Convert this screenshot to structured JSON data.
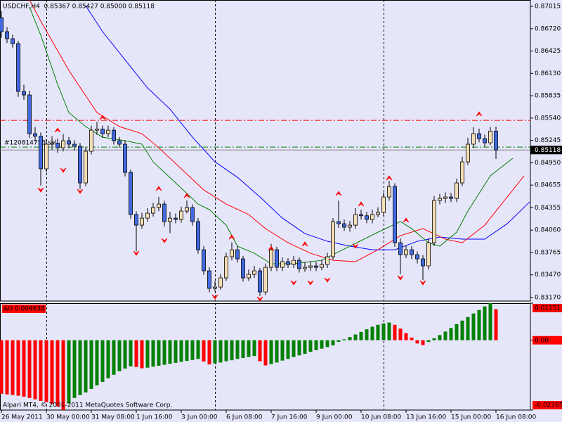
{
  "chart_data": [
    {
      "type": "candlestick",
      "title": "USDCHF,H4  0.85367 0.85427 0.85000 0.85118",
      "open": [
        0.86866,
        0.86681,
        0.86588,
        0.86523,
        0.85891,
        0.85845,
        0.85334,
        0.853,
        0.8487,
        0.85195,
        0.8521,
        0.85148,
        0.85241,
        0.85195,
        0.85167,
        0.84684,
        0.85102,
        0.8538,
        0.85395,
        0.85334,
        0.8538,
        0.85241,
        0.85195,
        0.84823,
        0.84266,
        0.84126,
        0.84219,
        0.84284,
        0.84359,
        0.84405,
        0.84173,
        0.84219,
        0.84201,
        0.84312,
        0.84359,
        0.84173,
        0.83801,
        0.83523,
        0.83291,
        0.83309,
        0.8343,
        0.83709,
        0.83801,
        0.83681,
        0.8343,
        0.83476,
        0.83523,
        0.83244,
        0.83569,
        0.83801,
        0.83569,
        0.83644,
        0.83606,
        0.83662,
        0.83551,
        0.83569,
        0.83588,
        0.83569,
        0.83606,
        0.83709,
        0.84173,
        0.84145,
        0.84099,
        0.84126,
        0.84266,
        0.8425,
        0.84201,
        0.84266,
        0.84294,
        0.84498,
        0.84637,
        0.83894,
        0.83736,
        0.83801,
        0.83736,
        0.83681,
        0.83588,
        0.83894,
        0.84452,
        0.84479,
        0.84498,
        0.84479,
        0.84684,
        0.84962,
        0.85195,
        0.85334,
        0.85269,
        0.85213,
        0.85367
      ],
      "high": [
        0.8695,
        0.8674,
        0.8664,
        0.8656,
        0.8598,
        0.859,
        0.8542,
        0.8535,
        0.8526,
        0.853,
        0.8527,
        0.8533,
        0.8529,
        0.8525,
        0.8521,
        0.8516,
        0.8544,
        0.8549,
        0.8544,
        0.8544,
        0.8542,
        0.8529,
        0.8525,
        0.8486,
        0.8431,
        0.8429,
        0.8435,
        0.8442,
        0.845,
        0.8445,
        0.843,
        0.8428,
        0.8437,
        0.8445,
        0.844,
        0.8422,
        0.8385,
        0.8357,
        0.8339,
        0.8348,
        0.8376,
        0.839,
        0.8385,
        0.8372,
        0.8354,
        0.8359,
        0.8356,
        0.8362,
        0.8388,
        0.8384,
        0.837,
        0.8369,
        0.8372,
        0.837,
        0.8364,
        0.8365,
        0.8364,
        0.8367,
        0.8376,
        0.8422,
        0.8445,
        0.842,
        0.8418,
        0.8435,
        0.8433,
        0.843,
        0.8433,
        0.8436,
        0.8456,
        0.8471,
        0.8468,
        0.8395,
        0.8386,
        0.8385,
        0.8378,
        0.8373,
        0.8395,
        0.8451,
        0.8454,
        0.8456,
        0.8455,
        0.8474,
        0.8503,
        0.8528,
        0.8542,
        0.854,
        0.8532,
        0.8542,
        0.85427
      ],
      "low": [
        0.866,
        0.8653,
        0.8647,
        0.8582,
        0.8578,
        0.8528,
        0.8523,
        0.8465,
        0.8482,
        0.8512,
        0.8508,
        0.851,
        0.8514,
        0.8511,
        0.846,
        0.8464,
        0.8506,
        0.8532,
        0.8528,
        0.8529,
        0.8519,
        0.8515,
        0.8477,
        0.8421,
        0.8378,
        0.8408,
        0.8417,
        0.8424,
        0.8431,
        0.8411,
        0.8402,
        0.8415,
        0.8416,
        0.8428,
        0.8412,
        0.8375,
        0.8347,
        0.8324,
        0.8325,
        0.8327,
        0.8339,
        0.8366,
        0.8363,
        0.8338,
        0.8339,
        0.8343,
        0.8319,
        0.832,
        0.8352,
        0.8352,
        0.8352,
        0.8356,
        0.8356,
        0.835,
        0.8351,
        0.8352,
        0.8352,
        0.8353,
        0.8356,
        0.8367,
        0.8409,
        0.8405,
        0.8404,
        0.8408,
        0.842,
        0.8415,
        0.8415,
        0.8423,
        0.8425,
        0.8445,
        0.8384,
        0.8348,
        0.8369,
        0.8368,
        0.8362,
        0.834,
        0.8354,
        0.8385,
        0.844,
        0.8442,
        0.8443,
        0.8443,
        0.8464,
        0.8492,
        0.8515,
        0.8522,
        0.8516,
        0.8518,
        0.85
      ],
      "close": [
        0.86681,
        0.86588,
        0.86523,
        0.85891,
        0.85845,
        0.85334,
        0.853,
        0.8487,
        0.85195,
        0.8521,
        0.85148,
        0.85241,
        0.85195,
        0.85167,
        0.84684,
        0.85102,
        0.8538,
        0.85395,
        0.85334,
        0.8538,
        0.85241,
        0.85195,
        0.84823,
        0.84266,
        0.84126,
        0.84219,
        0.84284,
        0.84359,
        0.84405,
        0.84173,
        0.84219,
        0.84201,
        0.84312,
        0.84359,
        0.84173,
        0.83801,
        0.83523,
        0.83291,
        0.83309,
        0.8343,
        0.83709,
        0.83801,
        0.83681,
        0.8343,
        0.83476,
        0.83523,
        0.83244,
        0.83569,
        0.83801,
        0.83569,
        0.83644,
        0.83606,
        0.83662,
        0.83551,
        0.83569,
        0.83588,
        0.83569,
        0.83606,
        0.83709,
        0.84173,
        0.84145,
        0.84099,
        0.84126,
        0.84266,
        0.8425,
        0.84201,
        0.84266,
        0.84294,
        0.84498,
        0.84637,
        0.83894,
        0.83736,
        0.83801,
        0.83736,
        0.83681,
        0.83588,
        0.83894,
        0.84452,
        0.84479,
        0.84498,
        0.84479,
        0.84684,
        0.84962,
        0.85195,
        0.85334,
        0.85269,
        0.85213,
        0.85367,
        0.85118
      ],
      "up_color": "#f5deb3",
      "down_color": "#4169e1",
      "ylim": [
        0.83124,
        0.87099
      ],
      "yticks": [
        0.87015,
        {
          "value": 0.8672,
          "label": "0.86720"
        },
        0.86425,
        {
          "value": 0.8613,
          "label": "0.86130"
        },
        0.85835,
        {
          "value": 0.8554,
          "label": "0.85540"
        },
        0.85245,
        {
          "value": 0.8495,
          "label": "0.84950"
        },
        0.84655,
        0.84355,
        {
          "value": 0.8406,
          "label": "0.84060"
        },
        0.83765,
        {
          "value": 0.8347,
          "label": "0.83470"
        },
        {
          "value": 0.8317,
          "label": "0.83170"
        }
      ],
      "xticks": [
        {
          "value": 0,
          "label": "26 May 2011"
        },
        {
          "value": 8,
          "label": "30 May 00:00"
        },
        {
          "value": 16,
          "label": "31 May 08:00"
        },
        {
          "value": 24,
          "label": "1 Jun 16:00"
        },
        {
          "value": 32,
          "label": "3 Jun 00:00"
        },
        {
          "value": 40,
          "label": "6 Jun 08:00"
        },
        {
          "value": 48,
          "label": "7 Jun 16:00"
        },
        {
          "value": 56,
          "label": "9 Jun 00:00"
        },
        {
          "value": 64,
          "label": "10 Jun 08:00"
        },
        {
          "value": 72,
          "label": "13 Jun 16:00"
        },
        {
          "value": 80,
          "label": "15 Jun 00:00"
        },
        {
          "value": 88,
          "label": "16 Jun 08:00"
        }
      ],
      "lines": [
        {
          "color": "#0000ff",
          "x": [
            15,
            18,
            22,
            26,
            30,
            34,
            38,
            42,
            46,
            50,
            54,
            58,
            62,
            66,
            70,
            74,
            78,
            82,
            86,
            90,
            94
          ],
          "values": [
            0.87024,
            0.86681,
            0.86309,
            0.85938,
            0.85659,
            0.85287,
            0.84962,
            0.84758,
            0.84498,
            0.84219,
            0.84015,
            0.83913,
            0.83848,
            0.83801,
            0.83801,
            0.83913,
            0.83969,
            0.83941,
            0.83941,
            0.84145,
            0.84433
          ]
        },
        {
          "color": "#ff0000",
          "x": [
            5,
            7,
            12,
            17,
            21,
            25,
            28,
            32,
            36,
            40,
            44,
            47,
            51,
            55,
            59,
            63,
            67,
            71,
            75,
            79,
            82,
            86,
            90,
            93
          ],
          "values": [
            0.87099,
            0.8682,
            0.8617,
            0.85613,
            0.85427,
            0.85334,
            0.85148,
            0.8487,
            0.84591,
            0.84405,
            0.84266,
            0.8408,
            0.83894,
            0.83755,
            0.83662,
            0.83644,
            0.83801,
            0.83987,
            0.8408,
            0.83941,
            0.83894,
            0.84126,
            0.84498,
            0.84777
          ]
        },
        {
          "color": "#008000",
          "x": [
            5,
            7,
            10,
            12,
            15,
            18,
            22,
            25,
            27,
            31,
            35,
            37,
            40,
            42,
            45,
            48,
            52,
            57,
            62,
            67,
            71,
            73,
            76,
            78,
            81,
            83,
            87,
            91
          ],
          "values": [
            0.87006,
            0.86634,
            0.85984,
            0.85613,
            0.85427,
            0.85287,
            0.85241,
            0.85195,
            0.84962,
            0.84684,
            0.84405,
            0.84331,
            0.84126,
            0.83848,
            0.83755,
            0.83616,
            0.83616,
            0.83662,
            0.83848,
            0.84033,
            0.84173,
            0.8408,
            0.83894,
            0.83848,
            0.84033,
            0.84312,
            0.84777,
            0.85009
          ]
        }
      ],
      "fractals_up": {
        "color": "#ff0000",
        "x": [
          10,
          18,
          28,
          33,
          41,
          48,
          54,
          60,
          64,
          69,
          72,
          85
        ],
        "values": [
          0.8538,
          0.85548,
          0.84609,
          0.84516,
          0.83968,
          0.8382,
          0.83876,
          0.84544,
          0.84405,
          0.84749,
          0.84191,
          0.85594
        ]
      },
      "fractals_down": {
        "color": "#ff0000",
        "x": [
          7,
          11,
          14,
          24,
          29,
          38,
          46,
          52,
          55,
          58,
          63,
          71,
          75
        ],
        "values": [
          0.84591,
          0.84851,
          0.84572,
          0.83755,
          0.83922,
          0.83179,
          0.83151,
          0.83365,
          0.83365,
          0.83402,
          0.83848,
          0.8343,
          0.83365
        ]
      },
      "levels": [
        {
          "value": 0.8551,
          "color": "#ff0000"
        },
        {
          "value": 0.85157,
          "color": "#008000"
        }
      ],
      "order_label": "#120814753 sell",
      "bid_color": "#808080"
    },
    {
      "type": "histogram",
      "title": "AO 0.009638",
      "values": [
        -0.0166,
        -0.0168,
        -0.017,
        -0.0172,
        -0.0175,
        -0.0179,
        -0.0183,
        -0.0188,
        -0.0192,
        -0.0197,
        -0.0205,
        -0.02165,
        -0.0196,
        -0.0179,
        -0.017,
        -0.0162,
        -0.0151,
        -0.014,
        -0.0129,
        -0.0118,
        -0.0107,
        -0.0096,
        -0.0088,
        -0.0081,
        -0.0083,
        -0.0087,
        -0.0085,
        -0.0082,
        -0.0079,
        -0.0076,
        -0.0073,
        -0.007,
        -0.0067,
        -0.0064,
        -0.0061,
        -0.0058,
        -0.0066,
        -0.0075,
        -0.0072,
        -0.0069,
        -0.0065,
        -0.0062,
        -0.0058,
        -0.0055,
        -0.0052,
        -0.0049,
        -0.0065,
        -0.0078,
        -0.0074,
        -0.0069,
        -0.0063,
        -0.0058,
        -0.0052,
        -0.0047,
        -0.0042,
        -0.0036,
        -0.0031,
        -0.0026,
        -0.0021,
        -0.0016,
        -0.0005,
        0.0003,
        0.001,
        0.0018,
        0.0026,
        0.0034,
        0.0042,
        0.0048,
        0.0052,
        0.0055,
        0.0048,
        0.0036,
        0.0022,
        0.0008,
        -0.001,
        -0.0015,
        -0.0005,
        0.0006,
        0.0016,
        0.0027,
        0.0038,
        0.005,
        0.0061,
        0.0072,
        0.0083,
        0.0094,
        0.0105,
        0.011513,
        0.009638
      ],
      "up_color": "#008000",
      "down_color": "#ff0000",
      "ylim": [
        -0.02165,
        0.011513
      ],
      "yticks": [
        0.011513,
        {
          "value": 0,
          "label": "0.00"
        },
        -0.02165
      ],
      "footer": "Alpari MT4, © 2001-2011 MetaQuotes Software Corp."
    }
  ]
}
